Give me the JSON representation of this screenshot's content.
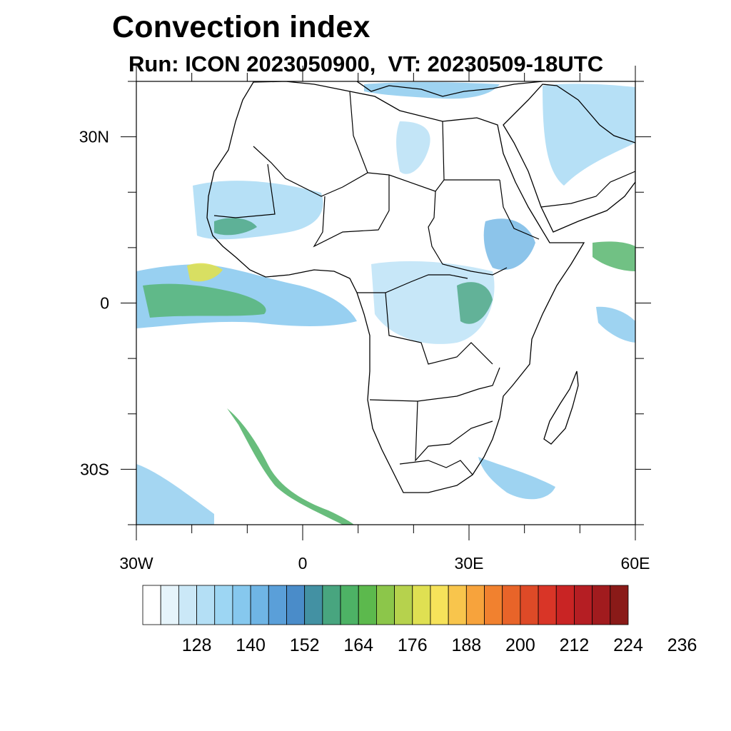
{
  "title": "Convection index",
  "subtitle": "Run: ICON 2023050900,  VT: 20230509-18UTC",
  "map": {
    "lon_ticks": [
      {
        "value": -30,
        "label": "30W"
      },
      {
        "value": 0,
        "label": "0"
      },
      {
        "value": 30,
        "label": "30E"
      },
      {
        "value": 60,
        "label": "60E"
      }
    ],
    "lat_ticks": [
      {
        "value": 30,
        "label": "30N"
      },
      {
        "value": 0,
        "label": "0"
      },
      {
        "value": -30,
        "label": "30S"
      }
    ],
    "lon_range": [
      -30,
      60
    ],
    "lat_range": [
      -40,
      40
    ]
  },
  "colorbar": {
    "start": 116,
    "step": 4,
    "labels": [
      "128",
      "140",
      "152",
      "164",
      "176",
      "188",
      "200",
      "212",
      "224",
      "236"
    ],
    "colors": [
      "#ffffff",
      "#e6f4fb",
      "#cbe8f7",
      "#b4dff5",
      "#9dd6f3",
      "#86c8ee",
      "#6fb5e5",
      "#5a9fd9",
      "#4a8cc9",
      "#4391a3",
      "#48a57f",
      "#4db265",
      "#5cb94d",
      "#8cc64a",
      "#b6d24d",
      "#dfe052",
      "#f6e25a",
      "#f8c54c",
      "#f7a33c",
      "#f1812f",
      "#e86429",
      "#de4a27",
      "#d93527",
      "#c92424",
      "#b51e23",
      "#a11b1e",
      "#8a1a18"
    ]
  }
}
